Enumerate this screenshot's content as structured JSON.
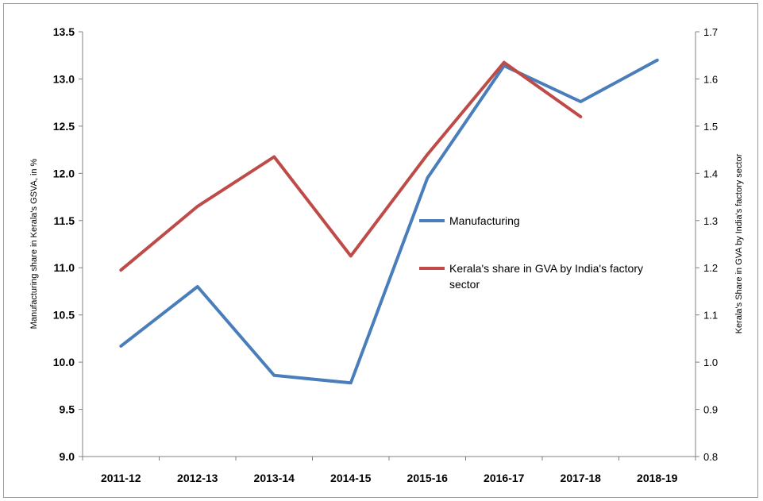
{
  "chart_data": {
    "type": "line",
    "categories": [
      "2011-12",
      "2012-13",
      "2013-14",
      "2014-15",
      "2015-16",
      "2016-17",
      "2017-18",
      "2018-19"
    ],
    "ylabel": "Manufacturing share in Kerala's GSVA, in %",
    "y2label": "Kerala's Share in GVA by India's factory sector",
    "ylim": [
      9.0,
      13.5
    ],
    "y2lim": [
      0.8,
      1.7
    ],
    "yticks": [
      "9.0",
      "9.5",
      "10.0",
      "10.5",
      "11.0",
      "11.5",
      "12.0",
      "12.5",
      "13.0",
      "13.5"
    ],
    "y2ticks": [
      "0.8",
      "0.9",
      "1.0",
      "1.1",
      "1.2",
      "1.3",
      "1.4",
      "1.5",
      "1.6",
      "1.7"
    ],
    "grid": false,
    "legend_position": "center-right",
    "series": [
      {
        "name": "Manufacturing",
        "axis": "left",
        "color": "#4a7ebb",
        "values": [
          10.17,
          10.8,
          9.86,
          9.78,
          11.95,
          13.14,
          12.76,
          13.2
        ]
      },
      {
        "name": "Kerala's share in GVA by India's factory sector",
        "axis": "right",
        "color": "#be4b48",
        "values": [
          1.195,
          1.33,
          1.435,
          1.225,
          1.44,
          1.635,
          1.52,
          null
        ]
      }
    ]
  }
}
